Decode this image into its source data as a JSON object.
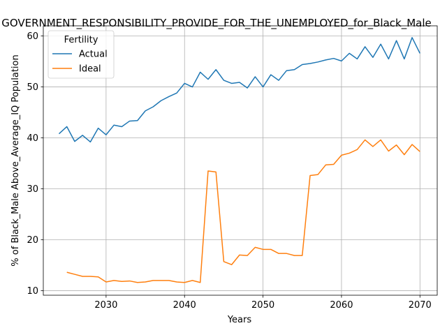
{
  "chart_data": {
    "type": "line",
    "title": "GOVERNMENT_RESPONSIBILITY_PROVIDE_FOR_THE_UNEMPLOYED_for_Black_Male",
    "xlabel": "Years",
    "ylabel": "% of Black_Male Above_Average_IQ Population",
    "xlim": [
      2022,
      2072.2
    ],
    "ylim": [
      9.1,
      62.0
    ],
    "xticks": [
      2030,
      2040,
      2050,
      2060,
      2070
    ],
    "yticks": [
      10,
      20,
      30,
      40,
      50,
      60
    ],
    "grid": true,
    "legend": {
      "title": "Fertility",
      "placement": "upper-left"
    },
    "series": [
      {
        "name": "Actual",
        "color": "#1f77b4",
        "x": [
          2024,
          2025,
          2026,
          2027,
          2028,
          2029,
          2030,
          2031,
          2032,
          2033,
          2034,
          2035,
          2036,
          2037,
          2038,
          2039,
          2040,
          2041,
          2042,
          2043,
          2044,
          2045,
          2046,
          2047,
          2048,
          2049,
          2050,
          2051,
          2052,
          2053,
          2054,
          2055,
          2056,
          2057,
          2058,
          2059,
          2060,
          2061,
          2062,
          2063,
          2064,
          2065,
          2066,
          2067,
          2068,
          2069,
          2070
        ],
        "y": [
          40.8,
          42.2,
          39.3,
          40.5,
          39.2,
          41.9,
          40.6,
          42.5,
          42.2,
          43.3,
          43.4,
          45.3,
          46.1,
          47.3,
          48.1,
          48.8,
          50.7,
          50.0,
          52.9,
          51.5,
          53.4,
          51.3,
          50.7,
          50.9,
          49.8,
          52.0,
          50.0,
          52.4,
          51.3,
          53.2,
          53.4,
          54.4,
          54.6,
          54.9,
          55.3,
          55.6,
          55.1,
          56.6,
          55.5,
          57.9,
          55.8,
          58.4,
          55.5,
          59.1,
          55.5,
          59.7,
          56.6
        ]
      },
      {
        "name": "Ideal",
        "color": "#ff7f0e",
        "x": [
          2025,
          2026,
          2027,
          2028,
          2029,
          2030,
          2031,
          2032,
          2033,
          2034,
          2035,
          2036,
          2037,
          2038,
          2039,
          2040,
          2041,
          2042,
          2043,
          2044,
          2045,
          2046,
          2047,
          2048,
          2049,
          2050,
          2051,
          2052,
          2053,
          2054,
          2055,
          2056,
          2057,
          2058,
          2059,
          2060,
          2061,
          2062,
          2063,
          2064,
          2065,
          2066,
          2067,
          2068,
          2069,
          2070
        ],
        "y": [
          13.6,
          13.2,
          12.8,
          12.8,
          12.7,
          11.7,
          12.0,
          11.8,
          11.9,
          11.6,
          11.7,
          12.0,
          12.0,
          12.0,
          11.7,
          11.6,
          12.0,
          11.6,
          33.5,
          33.3,
          15.7,
          15.1,
          17.0,
          16.9,
          18.5,
          18.1,
          18.1,
          17.3,
          17.3,
          16.9,
          16.9,
          32.6,
          32.8,
          34.7,
          34.8,
          36.6,
          37.0,
          37.7,
          39.6,
          38.3,
          39.6,
          37.4,
          38.6,
          36.7,
          38.7,
          37.3
        ]
      }
    ]
  }
}
